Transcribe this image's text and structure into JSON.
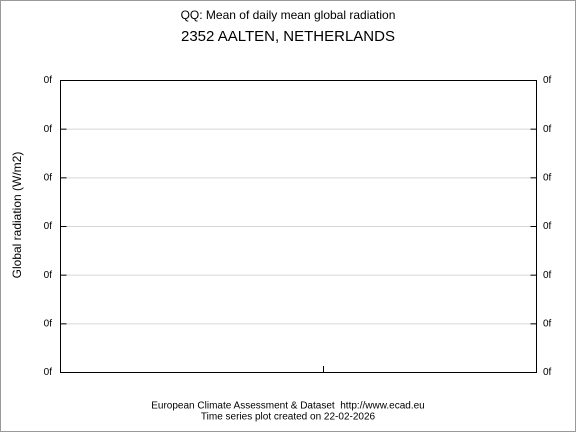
{
  "chart_data": {
    "type": "line",
    "title": "QQ: Mean of daily mean global radiation",
    "subtitle": "2352 AALTEN, NETHERLANDS",
    "y_label": "Global radiation (W/m2)",
    "footer": [
      "European Climate Assessment & Dataset  http://www.ecad.eu",
      "Time series plot created on 22-02-2026"
    ],
    "ylim": [
      0,
      0.6
    ],
    "yticks": [
      {
        "value": 0,
        "label": "0f"
      },
      {
        "value": 0.1,
        "label": "0f"
      },
      {
        "value": 0.2,
        "label": "0f"
      },
      {
        "value": 0.3,
        "label": "0f"
      },
      {
        "value": 0.4,
        "label": "0f"
      },
      {
        "value": 0.5,
        "label": "0f"
      },
      {
        "value": 0.6,
        "label": "0f"
      }
    ],
    "grid": true,
    "right_axis_labels": true
  }
}
